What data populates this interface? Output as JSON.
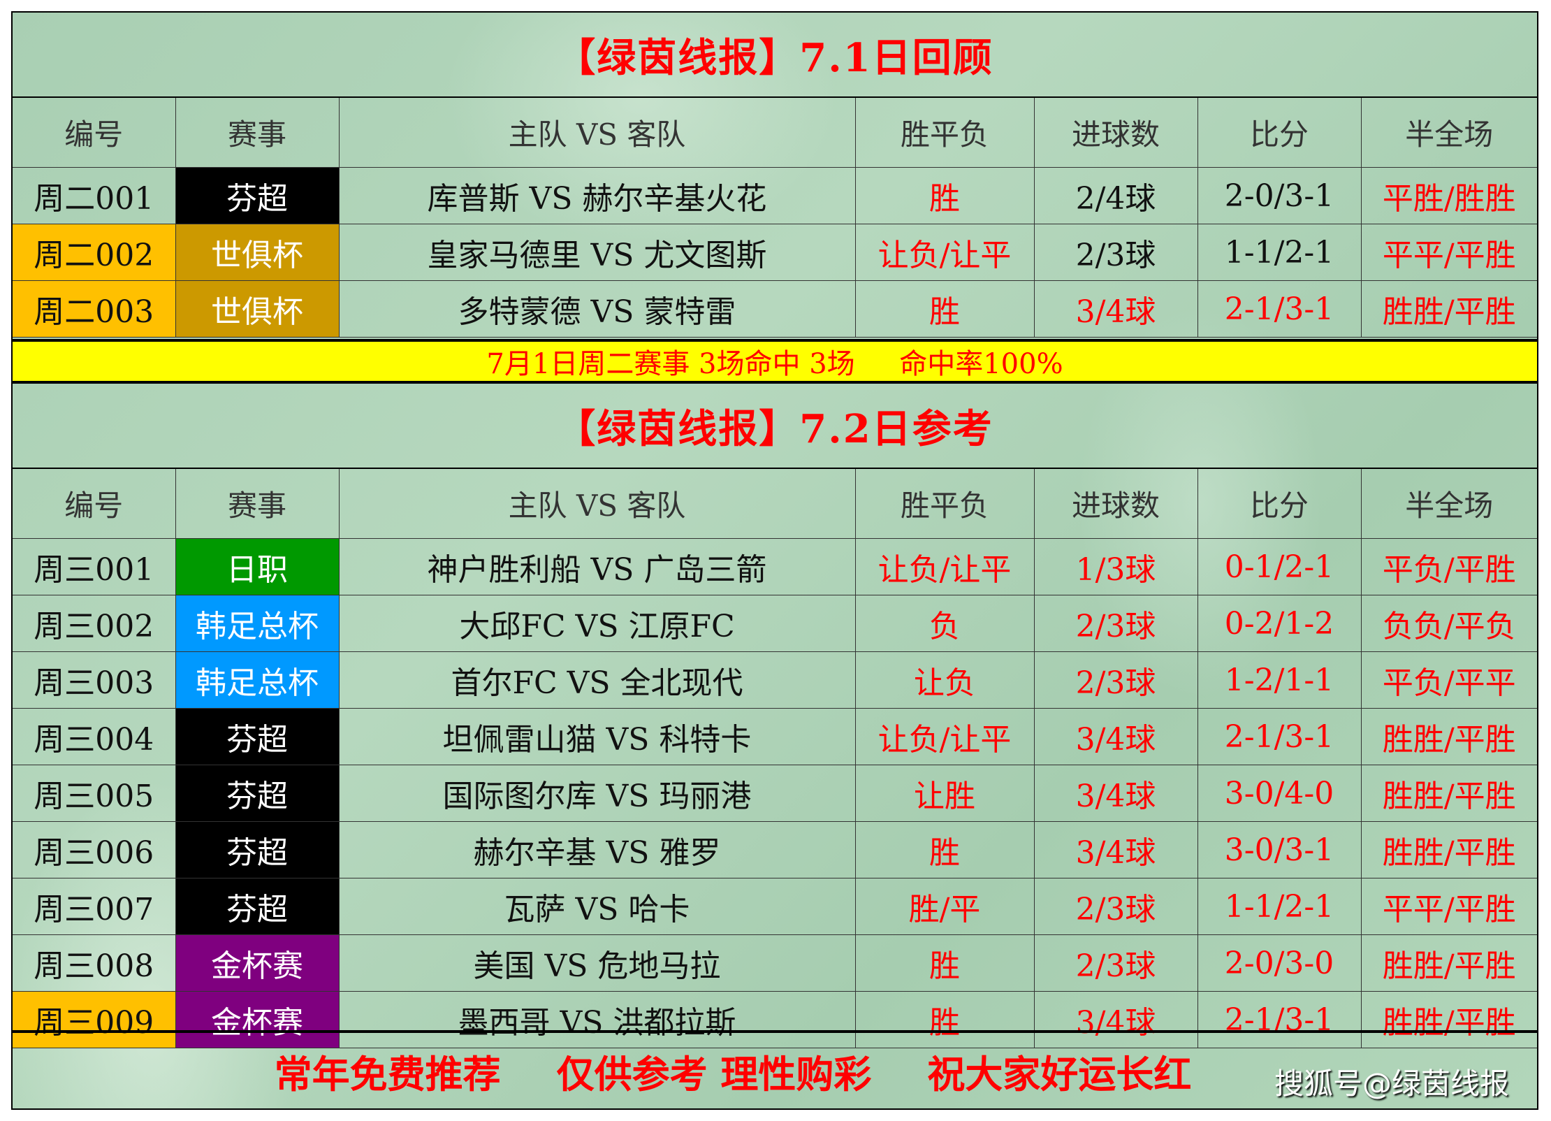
{
  "headers": [
    "编号",
    "赛事",
    "主队 VS 客队",
    "胜平负",
    "进球数",
    "比分",
    "半全场"
  ],
  "review": {
    "title": "【绿茵线报】7.1日回顾",
    "rows": [
      {
        "id": "周二001",
        "league": "芬超",
        "match": "库普斯 VS 赫尔辛基火花",
        "result": "胜",
        "goals": "2/4球",
        "score": "2-0/3-1",
        "htft": "平胜/胜胜",
        "id_bg": "",
        "league_bg": "#000000",
        "red": [
          true,
          false,
          false,
          true
        ]
      },
      {
        "id": "周二002",
        "league": "世俱杯",
        "match": "皇家马德里 VS 尤文图斯",
        "result": "让负/让平",
        "goals": "2/3球",
        "score": "1-1/2-1",
        "htft": "平平/平胜",
        "id_bg": "#ffc000",
        "league_bg": "#cc9900",
        "red": [
          true,
          false,
          false,
          true
        ]
      },
      {
        "id": "周二003",
        "league": "世俱杯",
        "match": "多特蒙德 VS 蒙特雷",
        "result": "胜",
        "goals": "3/4球",
        "score": "2-1/3-1",
        "htft": "胜胜/平胜",
        "id_bg": "#ffc000",
        "league_bg": "#cc9900",
        "red": [
          true,
          true,
          true,
          true
        ]
      }
    ],
    "summary": "7月1日周二赛事 3场命中 3场     命中率100%"
  },
  "reference": {
    "title": "【绿茵线报】7.2日参考",
    "rows": [
      {
        "id": "周三001",
        "league": "日职",
        "match": "神户胜利船 VS 广岛三箭",
        "result": "让负/让平",
        "goals": "1/3球",
        "score": "0-1/2-1",
        "htft": "平负/平胜",
        "id_bg": "",
        "league_bg": "#009900",
        "red": [
          true,
          true,
          true,
          true
        ]
      },
      {
        "id": "周三002",
        "league": "韩足总杯",
        "match": "大邱FC VS 江原FC",
        "result": "负",
        "goals": "2/3球",
        "score": "0-2/1-2",
        "htft": "负负/平负",
        "id_bg": "",
        "league_bg": "#0099ff",
        "red": [
          true,
          true,
          true,
          true
        ]
      },
      {
        "id": "周三003",
        "league": "韩足总杯",
        "match": "首尔FC VS 全北现代",
        "result": "让负",
        "goals": "2/3球",
        "score": "1-2/1-1",
        "htft": "平负/平平",
        "id_bg": "",
        "league_bg": "#0099ff",
        "red": [
          true,
          true,
          true,
          true
        ]
      },
      {
        "id": "周三004",
        "league": "芬超",
        "match": "坦佩雷山猫 VS 科特卡",
        "result": "让负/让平",
        "goals": "3/4球",
        "score": "2-1/3-1",
        "htft": "胜胜/平胜",
        "id_bg": "",
        "league_bg": "#000000",
        "red": [
          true,
          true,
          true,
          true
        ]
      },
      {
        "id": "周三005",
        "league": "芬超",
        "match": "国际图尔库 VS 玛丽港",
        "result": "让胜",
        "goals": "3/4球",
        "score": "3-0/4-0",
        "htft": "胜胜/平胜",
        "id_bg": "",
        "league_bg": "#000000",
        "red": [
          true,
          true,
          true,
          true
        ]
      },
      {
        "id": "周三006",
        "league": "芬超",
        "match": "赫尔辛基 VS 雅罗",
        "result": "胜",
        "goals": "3/4球",
        "score": "3-0/3-1",
        "htft": "胜胜/平胜",
        "id_bg": "",
        "league_bg": "#000000",
        "red": [
          true,
          true,
          true,
          true
        ]
      },
      {
        "id": "周三007",
        "league": "芬超",
        "match": "瓦萨 VS 哈卡",
        "result": "胜/平",
        "goals": "2/3球",
        "score": "1-1/2-1",
        "htft": "平平/平胜",
        "id_bg": "",
        "league_bg": "#000000",
        "red": [
          true,
          true,
          true,
          true
        ]
      },
      {
        "id": "周三008",
        "league": "金杯赛",
        "match": "美国 VS 危地马拉",
        "result": "胜",
        "goals": "2/3球",
        "score": "2-0/3-0",
        "htft": "胜胜/平胜",
        "id_bg": "",
        "league_bg": "#7f007f",
        "red": [
          true,
          true,
          true,
          true
        ]
      },
      {
        "id": "周三009",
        "league": "金杯赛",
        "match": "墨西哥 VS 洪都拉斯",
        "result": "胜",
        "goals": "3/4球",
        "score": "2-1/3-1",
        "htft": "胜胜/平胜",
        "id_bg": "#ffc000",
        "league_bg": "#7f007f",
        "red": [
          true,
          true,
          true,
          true
        ]
      }
    ]
  },
  "footer": {
    "slogans": [
      "常年免费推荐",
      "仅供参考 理性购彩",
      "祝大家好运长红"
    ],
    "watermark": "搜狐号@绿茵线报"
  }
}
